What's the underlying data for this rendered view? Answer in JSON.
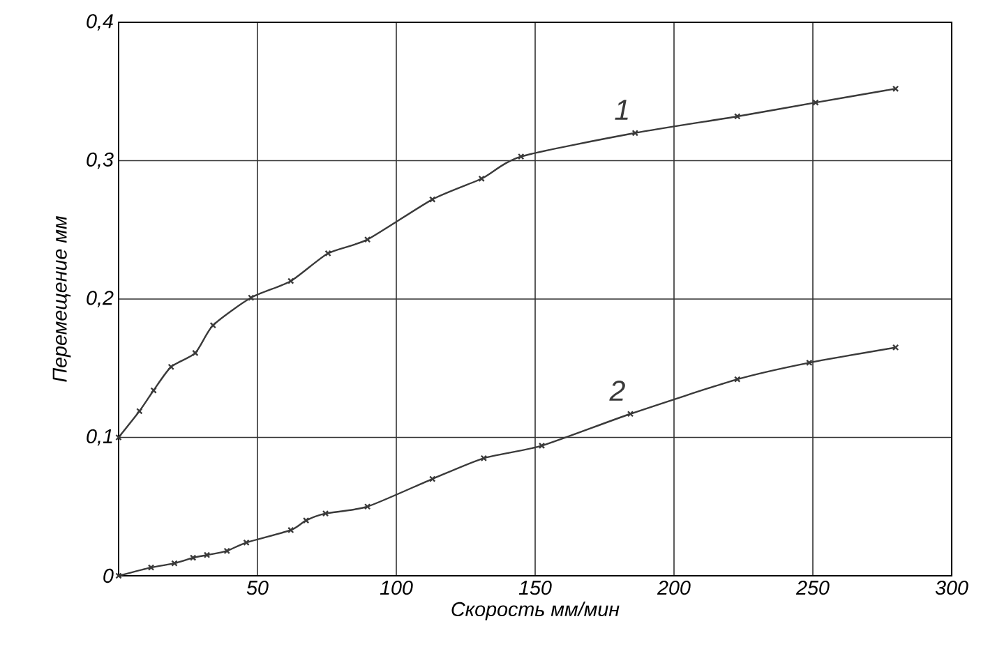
{
  "chart_data": {
    "type": "line",
    "xlabel": "Скорость  мм/мин",
    "ylabel": "Перемещение  мм",
    "xlim": [
      0,
      300
    ],
    "ylim": [
      0,
      0.4
    ],
    "xticks": [
      {
        "value": 0,
        "label": null
      },
      50,
      100,
      150,
      200,
      250,
      300
    ],
    "yticks": [
      0,
      {
        "value": 0.1,
        "label": "0,1"
      },
      {
        "value": 0.2,
        "label": "0,2"
      },
      {
        "value": 0.3,
        "label": "0,3"
      },
      {
        "value": 0.4,
        "label": "0,4"
      }
    ],
    "grid": true,
    "marker": "cross",
    "line_style": "solid",
    "series": [
      {
        "name": "1",
        "color": "#3a3a3a",
        "x": [
          0,
          7.5,
          12.6,
          18.9,
          27.6,
          34,
          47.7,
          62,
          75.4,
          89.6,
          113,
          130.7,
          144.9,
          186,
          222.8,
          251,
          279.8
        ],
        "values": [
          0.1,
          0.119,
          0.134,
          0.151,
          0.161,
          0.181,
          0.201,
          0.213,
          0.233,
          0.243,
          0.272,
          0.287,
          0.303,
          0.32,
          0.332,
          0.342,
          0.352
        ]
      },
      {
        "name": "2",
        "color": "#3a3a3a",
        "x": [
          0,
          11.7,
          20.1,
          26.8,
          31.8,
          39,
          46,
          62,
          67.5,
          74.5,
          89.6,
          113,
          131.5,
          152.4,
          184.3,
          222.8,
          248.7,
          279.8
        ],
        "values": [
          0,
          0.006,
          0.009,
          0.013,
          0.015,
          0.018,
          0.024,
          0.033,
          0.04,
          0.045,
          0.05,
          0.07,
          0.085,
          0.094,
          0.117,
          0.142,
          0.154,
          0.165
        ]
      }
    ]
  }
}
